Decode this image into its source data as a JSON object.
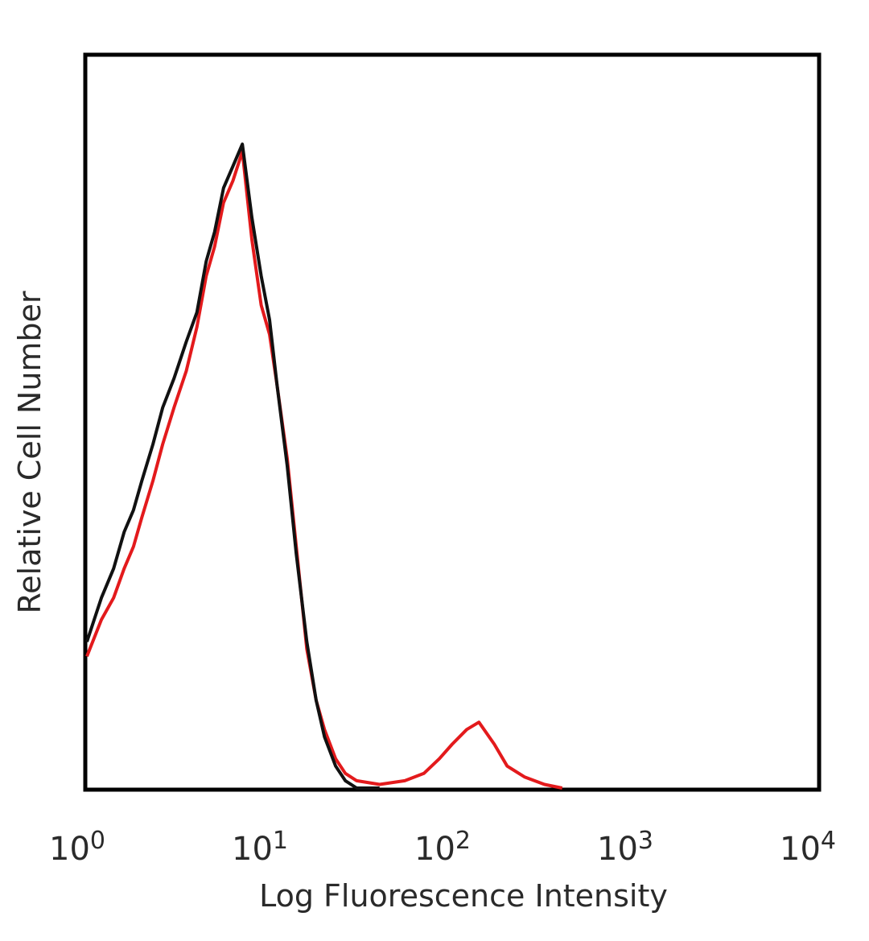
{
  "chart_data": {
    "type": "line",
    "title": "",
    "xlabel": "Log Fluorescence Intensity",
    "ylabel": "Relative Cell Number",
    "x_scale": "log",
    "xlim": [
      1,
      10000
    ],
    "ylim": [
      0,
      1
    ],
    "x_ticks": [
      {
        "base": "10",
        "exp": "0",
        "value": 1
      },
      {
        "base": "10",
        "exp": "1",
        "value": 10
      },
      {
        "base": "10",
        "exp": "2",
        "value": 100
      },
      {
        "base": "10",
        "exp": "3",
        "value": 1000
      },
      {
        "base": "10",
        "exp": "4",
        "value": 10000
      }
    ],
    "grid": false,
    "legend": "none",
    "series": [
      {
        "color": "#e31a1c",
        "x": [
          1.0,
          1.2,
          1.4,
          1.6,
          1.8,
          2.0,
          2.3,
          2.6,
          3.0,
          3.5,
          4.0,
          4.5,
          5.0,
          5.6,
          6.3,
          7.1,
          8.0,
          9.0,
          10.0,
          11.0,
          12.5,
          14.0,
          16.0,
          18.0,
          20.0,
          23.0,
          26.0,
          30.0,
          40.0,
          55.0,
          70.0,
          85.0,
          100.0,
          120.0,
          140.0,
          170.0,
          200.0,
          250.0,
          320.0,
          400.0
        ],
        "y": [
          0.18,
          0.23,
          0.26,
          0.3,
          0.33,
          0.37,
          0.42,
          0.47,
          0.52,
          0.57,
          0.63,
          0.7,
          0.74,
          0.8,
          0.83,
          0.87,
          0.75,
          0.66,
          0.62,
          0.55,
          0.45,
          0.33,
          0.19,
          0.12,
          0.08,
          0.04,
          0.02,
          0.01,
          0.005,
          0.01,
          0.02,
          0.04,
          0.06,
          0.08,
          0.09,
          0.06,
          0.03,
          0.015,
          0.005,
          0.0
        ]
      },
      {
        "color": "#111111",
        "x": [
          1.0,
          1.2,
          1.4,
          1.6,
          1.8,
          2.0,
          2.3,
          2.6,
          3.0,
          3.5,
          4.0,
          4.5,
          5.0,
          5.6,
          6.3,
          7.1,
          8.0,
          9.0,
          10.0,
          11.0,
          12.5,
          14.0,
          16.0,
          18.0,
          20.0,
          23.0,
          26.0,
          30.0,
          40.0
        ],
        "y": [
          0.2,
          0.26,
          0.3,
          0.35,
          0.38,
          0.42,
          0.47,
          0.52,
          0.56,
          0.61,
          0.65,
          0.72,
          0.76,
          0.82,
          0.85,
          0.88,
          0.78,
          0.7,
          0.64,
          0.55,
          0.44,
          0.32,
          0.2,
          0.12,
          0.07,
          0.03,
          0.01,
          0.0,
          0.0
        ]
      }
    ]
  }
}
